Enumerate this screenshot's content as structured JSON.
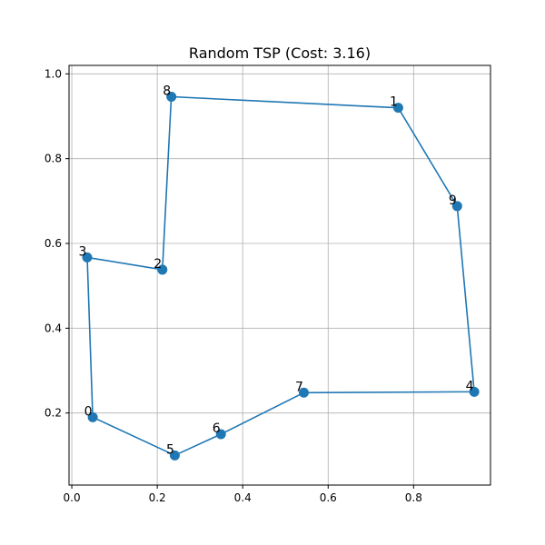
{
  "chart_data": {
    "type": "line",
    "title": "Random TSP (Cost: 3.16)",
    "xlabel": "",
    "ylabel": "",
    "xlim": [
      -0.0065,
      0.98
    ],
    "ylim": [
      0.03,
      1.02
    ],
    "grid": true,
    "x_ticks": [
      0.0,
      0.2,
      0.4,
      0.6,
      0.8
    ],
    "y_ticks": [
      0.2,
      0.4,
      0.6,
      0.8,
      1.0
    ],
    "x_tick_labels": [
      "0.0",
      "0.2",
      "0.4",
      "0.6",
      "0.8"
    ],
    "y_tick_labels": [
      "0.2",
      "0.4",
      "0.6",
      "0.8",
      "1.0"
    ],
    "line_color": "#1f77b4",
    "points": [
      {
        "label": "0",
        "x": 0.049,
        "y": 0.19
      },
      {
        "label": "1",
        "x": 0.764,
        "y": 0.92
      },
      {
        "label": "2",
        "x": 0.212,
        "y": 0.538
      },
      {
        "label": "3",
        "x": 0.036,
        "y": 0.567
      },
      {
        "label": "4",
        "x": 0.942,
        "y": 0.25
      },
      {
        "label": "5",
        "x": 0.241,
        "y": 0.1
      },
      {
        "label": "6",
        "x": 0.349,
        "y": 0.15
      },
      {
        "label": "7",
        "x": 0.543,
        "y": 0.248
      },
      {
        "label": "8",
        "x": 0.233,
        "y": 0.946
      },
      {
        "label": "9",
        "x": 0.902,
        "y": 0.688
      }
    ],
    "route": [
      "0",
      "5",
      "6",
      "7",
      "4",
      "9",
      "1",
      "8",
      "2",
      "3",
      "0"
    ]
  }
}
